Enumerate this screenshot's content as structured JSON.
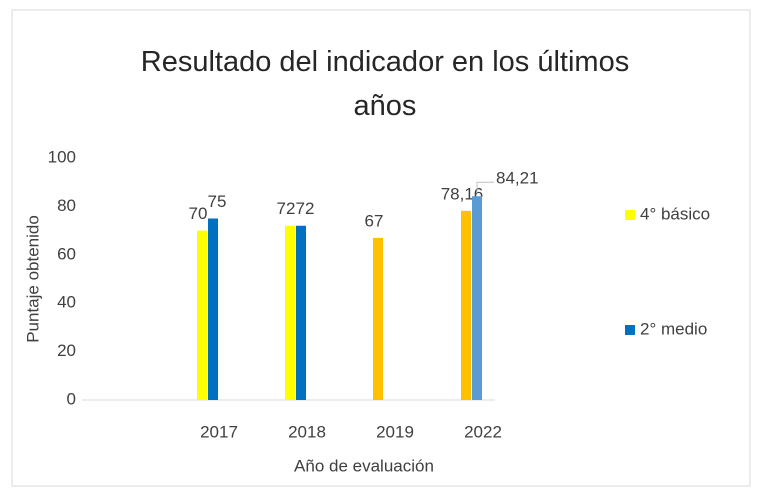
{
  "chart_data": {
    "type": "bar",
    "title": "Resultado del indicador en los últimos años",
    "x_label": "Año de evaluación",
    "y_label": "Puntaje obtenido",
    "categories": [
      "2017",
      "2018",
      "2019",
      "2022"
    ],
    "series": [
      {
        "name": "4° básico",
        "color": "#ffff00",
        "colors": [
          "#ffff00",
          "#ffff00",
          "#ffc000",
          "#ffc000"
        ],
        "values": [
          70,
          72,
          67,
          78.16
        ],
        "value_labels": [
          "70",
          "72",
          "67",
          "78,16"
        ]
      },
      {
        "name": "2° medio",
        "color": "#0070c0",
        "colors": [
          "#0070c0",
          "#0070c0",
          "#0070c0",
          "#5b9bd5"
        ],
        "values": [
          75,
          72,
          null,
          84.21
        ],
        "value_labels": [
          "75",
          "72",
          null,
          "84,21"
        ]
      }
    ],
    "ylim": [
      0,
      100
    ],
    "yticks": [
      0,
      20,
      40,
      60,
      80,
      100
    ],
    "legend": "right"
  }
}
